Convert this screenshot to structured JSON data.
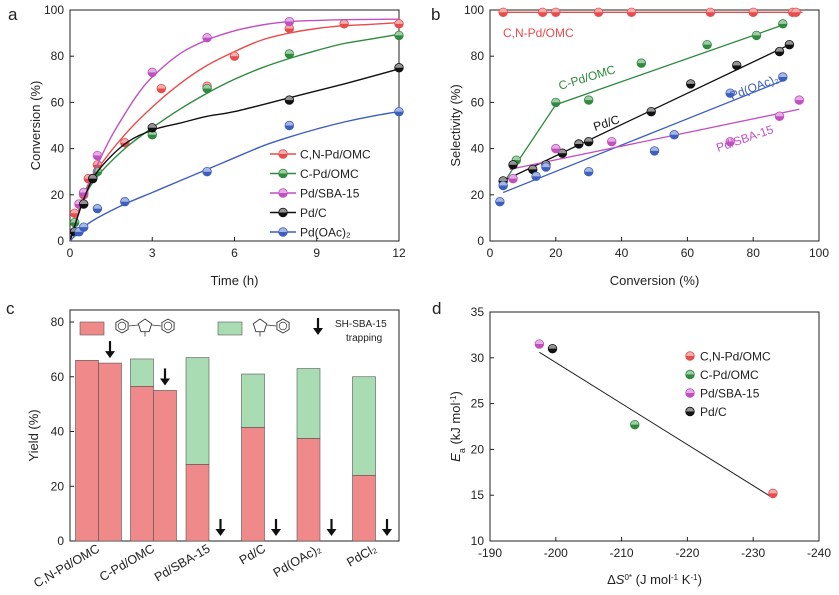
{
  "figure": {
    "panel_letters": [
      "a",
      "b",
      "c",
      "d"
    ]
  },
  "chart_data": [
    {
      "panel": "a",
      "type": "line",
      "xlabel": "Time (h)",
      "ylabel": "Conversion (%)",
      "xlim": [
        0,
        12
      ],
      "ylim": [
        0,
        100
      ],
      "xticks": [
        0,
        3,
        6,
        9,
        12
      ],
      "yticks": [
        0,
        20,
        40,
        60,
        80,
        100
      ],
      "legend_position": "right",
      "series": [
        {
          "name": "C,N-Pd/OMC",
          "color": "#e84c4c",
          "x": [
            0.17,
            0.33,
            0.5,
            0.67,
            1,
            2,
            3.33,
            5,
            6,
            8,
            10,
            12
          ],
          "y": [
            12,
            16,
            20,
            27,
            33,
            42.5,
            66,
            67,
            80,
            92,
            94,
            94
          ],
          "fit": [
            [
              0,
              0
            ],
            [
              0.5,
              20
            ],
            [
              1,
              31
            ],
            [
              2,
              46
            ],
            [
              3,
              58
            ],
            [
              4,
              68
            ],
            [
              5,
              76
            ],
            [
              6,
              82
            ],
            [
              7,
              87
            ],
            [
              8,
              90
            ],
            [
              9,
              92
            ],
            [
              10,
              93.2
            ],
            [
              11,
              93.8
            ],
            [
              12,
              94.5
            ]
          ]
        },
        {
          "name": "C-Pd/OMC",
          "color": "#2e8b3d",
          "x": [
            0.17,
            0.5,
            1,
            3,
            5,
            8,
            12
          ],
          "y": [
            8,
            21,
            30,
            46,
            66,
            81,
            89
          ],
          "fit": [
            [
              0,
              0
            ],
            [
              0.5,
              18
            ],
            [
              1,
              28
            ],
            [
              2,
              40
            ],
            [
              3,
              49
            ],
            [
              4,
              57
            ],
            [
              5,
              64
            ],
            [
              6,
              70
            ],
            [
              7,
              75
            ],
            [
              8,
              79
            ],
            [
              9,
              82.5
            ],
            [
              10,
              85.5
            ],
            [
              11,
              87.5
            ],
            [
              12,
              89.5
            ]
          ]
        },
        {
          "name": "Pd/SBA-15",
          "color": "#c24fc2",
          "x": [
            0.33,
            0.5,
            1,
            3,
            5,
            8
          ],
          "y": [
            16,
            21,
            37,
            73,
            88,
            95
          ],
          "fit": [
            [
              0,
              0
            ],
            [
              0.5,
              19
            ],
            [
              1,
              33
            ],
            [
              1.5,
              45
            ],
            [
              2,
              55
            ],
            [
              2.5,
              64
            ],
            [
              3,
              71
            ],
            [
              4,
              81
            ],
            [
              5,
              87
            ],
            [
              6,
              91
            ],
            [
              7,
              93.5
            ],
            [
              8,
              95
            ],
            [
              9,
              95.5
            ],
            [
              10,
              95.8
            ],
            [
              12,
              96
            ]
          ]
        },
        {
          "name": "Pd/C",
          "color": "#111111",
          "x": [
            0.17,
            0.5,
            0.83,
            3,
            8,
            12
          ],
          "y": [
            4,
            16,
            27,
            49,
            61,
            75
          ],
          "fit": [
            [
              0,
              0
            ],
            [
              0.5,
              18
            ],
            [
              1,
              30
            ],
            [
              2,
              42
            ],
            [
              3,
              48
            ],
            [
              4,
              51
            ],
            [
              5,
              54
            ],
            [
              6,
              56
            ],
            [
              8,
              62
            ],
            [
              10,
              68
            ],
            [
              12,
              74.5
            ]
          ]
        },
        {
          "name": "Pd(OAc)₂",
          "color": "#3d5fbf",
          "x": [
            0.33,
            0.5,
            1,
            2,
            5,
            8,
            12
          ],
          "y": [
            4,
            6,
            14,
            17,
            30,
            50,
            56
          ],
          "fit": [
            [
              0,
              0
            ],
            [
              0.5,
              6
            ],
            [
              1,
              10
            ],
            [
              2,
              16
            ],
            [
              3,
              21
            ],
            [
              4,
              26
            ],
            [
              5,
              31
            ],
            [
              6,
              36
            ],
            [
              7,
              41
            ],
            [
              8,
              45
            ],
            [
              9,
              48.5
            ],
            [
              10,
              51.5
            ],
            [
              11,
              54
            ],
            [
              12,
              56
            ]
          ]
        }
      ]
    },
    {
      "panel": "b",
      "type": "scatter",
      "xlabel": "Conversion (%)",
      "ylabel": "Selectivity (%)",
      "xlim": [
        0,
        100
      ],
      "ylim": [
        0,
        100
      ],
      "xticks": [
        0,
        20,
        40,
        60,
        80,
        100
      ],
      "yticks": [
        0,
        20,
        40,
        60,
        80,
        100
      ],
      "annotations": [
        "C,N-Pd/OMC",
        "C-Pd/OMC",
        "Pd/C",
        "Pd(OAc)₂",
        "Pd/SBA-15"
      ],
      "series": [
        {
          "name": "C,N-Pd/OMC",
          "color": "#e84c4c",
          "x": [
            4,
            16,
            20,
            33,
            43,
            67,
            80,
            92,
            93
          ],
          "y": [
            99,
            99,
            99,
            99,
            99,
            99,
            99,
            99,
            99
          ],
          "line": [
            [
              3,
              99
            ],
            [
              95,
              99
            ]
          ]
        },
        {
          "name": "C-Pd/OMC",
          "color": "#2e8b3d",
          "x": [
            8,
            20,
            30,
            46,
            66,
            81,
            89
          ],
          "y": [
            35,
            60,
            61,
            77,
            85,
            89,
            94
          ],
          "line": [
            [
              5,
              27
            ],
            [
              20,
              59
            ],
            [
              90,
              94
            ]
          ]
        },
        {
          "name": "Pd/C",
          "color": "#111111",
          "x": [
            4,
            7,
            13,
            17,
            22,
            27,
            30,
            49,
            61,
            75,
            88,
            91
          ],
          "y": [
            26,
            33,
            31,
            33,
            38,
            42,
            43,
            56,
            68,
            76,
            82,
            85
          ],
          "line": [
            [
              4,
              26
            ],
            [
              91,
              85
            ]
          ]
        },
        {
          "name": "Pd(OAc)₂",
          "color": "#3d5fbf",
          "x": [
            3,
            4,
            14,
            17,
            30,
            50,
            56,
            73,
            89
          ],
          "y": [
            17,
            24,
            28,
            32,
            30,
            39,
            46,
            64,
            71
          ],
          "line": [
            [
              4,
              21
            ],
            [
              90,
              70
            ]
          ]
        },
        {
          "name": "Pd/SBA-15",
          "color": "#c24fc2",
          "x": [
            7,
            20,
            37,
            73,
            88,
            94
          ],
          "y": [
            27,
            40,
            43,
            43,
            54,
            61
          ],
          "line": [
            [
              6,
              31
            ],
            [
              94,
              57
            ]
          ]
        }
      ]
    },
    {
      "panel": "c",
      "type": "bar",
      "ylabel": "Yield (%)",
      "ylim": [
        0,
        80
      ],
      "yticks": [
        0,
        20,
        40,
        60,
        80
      ],
      "categories": [
        "C,N-Pd/OMC",
        "C-Pd/OMC",
        "Pd/SBA-15",
        "Pd/C",
        "Pd(OAc)₂",
        "PdCl₂"
      ],
      "legend": {
        "product_1_color": "#f08a8a",
        "product_2_color": "#a9dcb2",
        "trapping_label_1": "SH-SBA-15",
        "trapping_label_2": "trapping"
      },
      "series": [
        {
          "name": "2,5-diphenyl-1-methylpyrrole",
          "color": "#f08a8a",
          "normal": [
            66,
            56.5,
            28,
            41.5,
            37.5,
            24
          ],
          "trapping": [
            65,
            55,
            0,
            0,
            0,
            0
          ]
        },
        {
          "name": "1-methyl-2-phenylpyrrole",
          "color": "#a9dcb2",
          "normal": [
            0,
            10,
            39,
            19.5,
            25.5,
            36
          ],
          "trapping": [
            0,
            0,
            0,
            0,
            0,
            0
          ]
        }
      ]
    },
    {
      "panel": "d",
      "type": "scatter",
      "xlabel_prefix": "Δ",
      "xlabel_var": "S",
      "xlabel_sup": "0*",
      "xlabel_units": " (J mol",
      "xlabel_units_sup1": "-1",
      "xlabel_units_mid": " K",
      "xlabel_units_sup2": "-1",
      "xlabel_units_end": ")",
      "ylabel_var": "E",
      "ylabel_sub": "a",
      "ylabel_units": " (kJ mol",
      "ylabel_units_sup": "-1",
      "ylabel_units_end": ")",
      "xlim": [
        -190,
        -240
      ],
      "ylim": [
        10,
        35
      ],
      "xticks": [
        -190,
        -200,
        -210,
        -220,
        -230,
        -240
      ],
      "yticks": [
        10,
        15,
        20,
        25,
        30,
        35
      ],
      "series": [
        {
          "name": "C,N-Pd/OMC",
          "color": "#e84c4c",
          "x": -233,
          "y": 15.2
        },
        {
          "name": "C-Pd/OMC",
          "color": "#2e8b3d",
          "x": -212,
          "y": 22.7
        },
        {
          "name": "Pd/SBA-15",
          "color": "#c24fc2",
          "x": -197.5,
          "y": 31.5
        },
        {
          "name": "Pd/C",
          "color": "#111111",
          "x": -199.5,
          "y": 31
        }
      ],
      "fit_line": [
        [
          -197.5,
          30.6
        ],
        [
          -233,
          14.7
        ]
      ]
    }
  ]
}
